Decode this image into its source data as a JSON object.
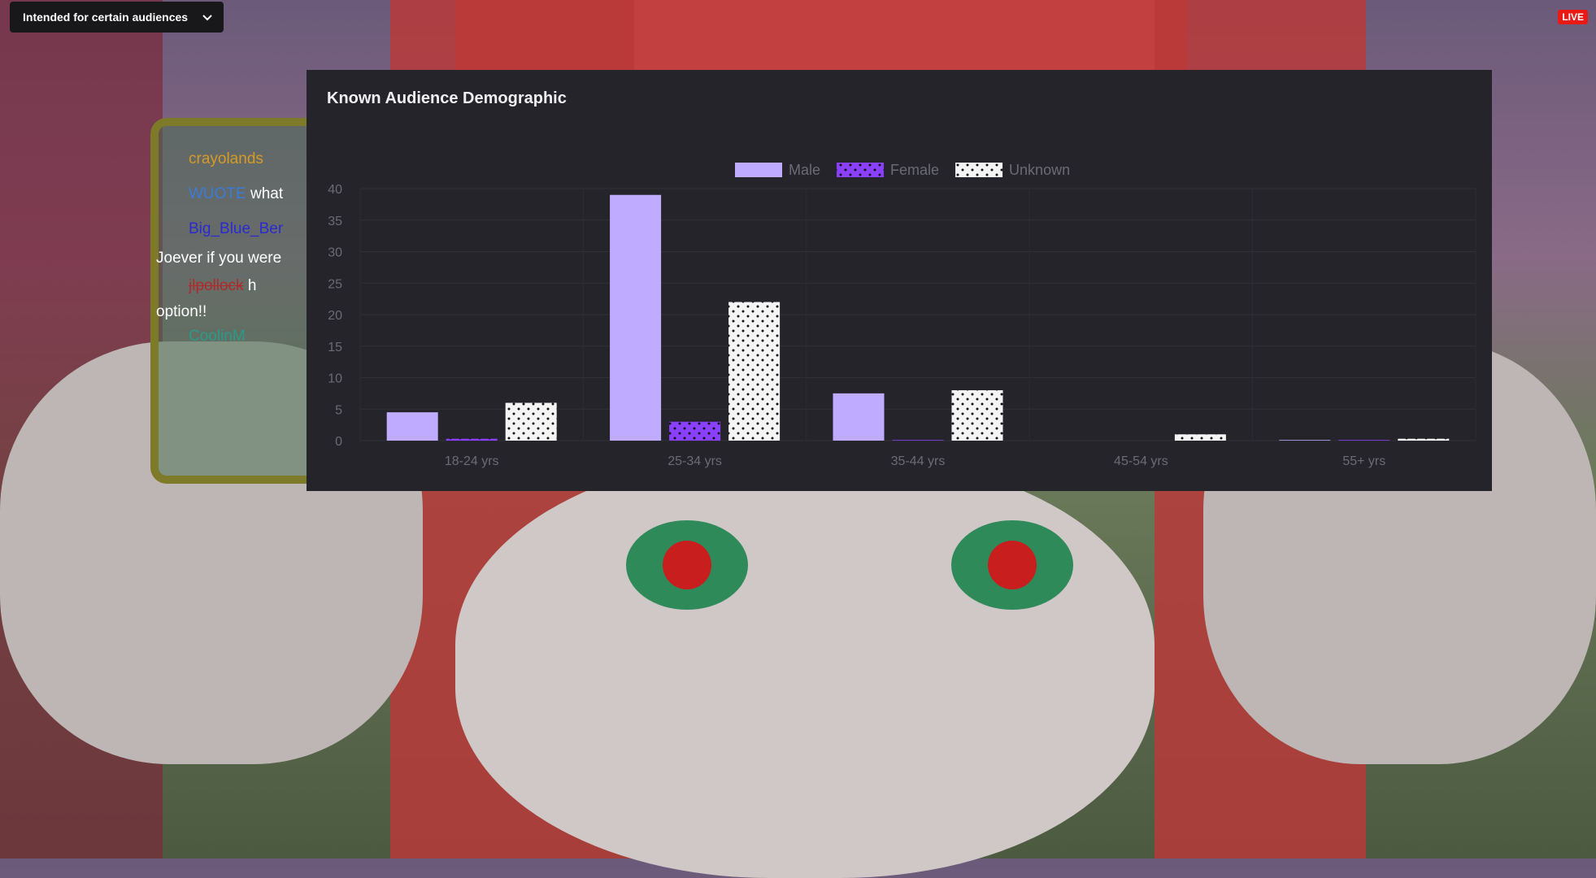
{
  "overlay": {
    "audience_button_label": "Intended for certain audiences",
    "live_badge": "LIVE"
  },
  "chat": {
    "messages": [
      {
        "user": "crayolands",
        "text": "",
        "color": "#d79a26"
      },
      {
        "user": "WUOTE",
        "text": "what",
        "color": "#3b7bd8"
      },
      {
        "user": "Big_Blue_Ber",
        "text": "",
        "color": "#2a2ad0"
      },
      {
        "user": "",
        "text": "Joever if you were",
        "color": "#ffffff"
      },
      {
        "user": "jlpollock",
        "text": "h",
        "color": "#b02a2a"
      },
      {
        "user": "",
        "text": "option!!",
        "color": "#ffffff"
      },
      {
        "user": "CoolinM",
        "text": "",
        "color": "#2a9a8a"
      }
    ]
  },
  "chart_data": {
    "type": "bar",
    "title": "Known Audience Demographic",
    "categories": [
      "18-24 yrs",
      "25-34 yrs",
      "35-44 yrs",
      "45-54 yrs",
      "55+ yrs"
    ],
    "series": [
      {
        "name": "Male",
        "values": [
          4.5,
          39,
          7.5,
          0,
          0.1
        ],
        "color": "#bfabff"
      },
      {
        "name": "Female",
        "values": [
          0.3,
          3,
          0.1,
          0,
          0.1
        ],
        "color": "#8a3ffc"
      },
      {
        "name": "Unknown",
        "values": [
          6,
          22,
          8,
          1,
          0.3
        ],
        "color": "#f4f4f5"
      }
    ],
    "ylim": [
      0,
      40
    ],
    "yticks": [
      "0",
      "5",
      "10",
      "15",
      "20",
      "25",
      "30",
      "35",
      "40"
    ],
    "grid": true,
    "legend": "top-center",
    "xlabel": "",
    "ylabel": ""
  }
}
